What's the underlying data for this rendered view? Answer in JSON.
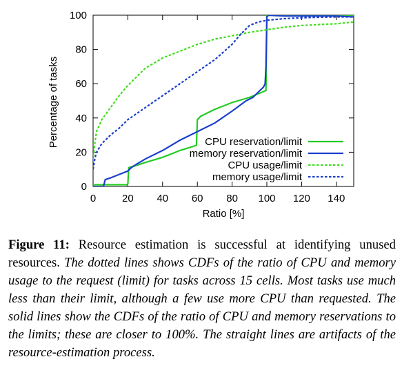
{
  "chart_data": {
    "type": "line",
    "xlabel": "Ratio [%]",
    "ylabel": "Percentage of tasks",
    "xlim": [
      0,
      150
    ],
    "ylim": [
      0,
      100
    ],
    "xticks": [
      0,
      20,
      40,
      60,
      80,
      100,
      120,
      140
    ],
    "yticks": [
      0,
      20,
      40,
      60,
      80,
      100
    ],
    "legend_position": "bottom-right",
    "grid": false,
    "series": [
      {
        "name": "CPU reservation/limit",
        "color": "#22cc22",
        "style": "solid",
        "x": [
          0,
          19.5,
          20,
          20.5,
          24,
          30,
          40,
          50,
          59.5,
          60,
          62,
          70,
          80,
          90,
          99.5,
          100,
          101,
          110,
          120,
          130,
          140,
          150
        ],
        "y": [
          1,
          1,
          1.5,
          11,
          12,
          14,
          17,
          21,
          24,
          39,
          41,
          45,
          49,
          52,
          56,
          100,
          100,
          100,
          100,
          100,
          100,
          100
        ]
      },
      {
        "name": "memory reservation/limit",
        "color": "#1a3fcc",
        "style": "solid",
        "x": [
          0,
          6,
          7,
          10,
          15,
          20,
          22,
          25,
          30,
          40,
          50,
          60,
          70,
          80,
          88,
          92,
          96,
          98,
          99,
          99.5,
          100,
          101,
          110,
          120,
          130,
          140,
          150
        ],
        "y": [
          0,
          0,
          4,
          5,
          7,
          9,
          11,
          13,
          16,
          21,
          27,
          32,
          37,
          44,
          50,
          52,
          56,
          58,
          60,
          70,
          99,
          100,
          99.5,
          99.5,
          99.5,
          99.5,
          99
        ]
      },
      {
        "name": "CPU usage/limit",
        "color": "#44dd22",
        "style": "dashed",
        "x": [
          0,
          1,
          2,
          5,
          10,
          15,
          20,
          30,
          40,
          50,
          60,
          70,
          80,
          90,
          100,
          110,
          120,
          130,
          140,
          150
        ],
        "y": [
          15,
          25,
          32,
          39,
          46,
          53,
          59,
          69,
          75,
          79,
          83,
          86,
          88,
          90,
          91.5,
          93,
          94,
          94.5,
          95,
          96
        ]
      },
      {
        "name": "memory usage/limit",
        "color": "#1a3fcc",
        "style": "dashed",
        "x": [
          0,
          1,
          2,
          5,
          10,
          15,
          20,
          30,
          40,
          50,
          60,
          70,
          80,
          85,
          90,
          95,
          100,
          110,
          120,
          130,
          140,
          150
        ],
        "y": [
          10,
          16,
          20,
          25,
          30,
          34,
          39,
          46,
          53,
          60,
          67,
          74,
          83,
          89,
          94,
          96,
          97,
          98,
          98.5,
          98.8,
          99,
          99
        ]
      }
    ]
  },
  "caption": {
    "label": "Figure 11:",
    "lead": "Resource estimation is successful at identifying unused resources.",
    "body": "The dotted lines shows CDFs of the ratio of CPU and memory usage to the request (limit) for tasks across 15 cells. Most tasks use much less than their limit, although a few use more CPU than requested. The solid lines show the CDFs of the ratio of CPU and memory reservations to the limits; these are closer to 100%. The straight lines are artifacts of the resource-estimation process."
  }
}
